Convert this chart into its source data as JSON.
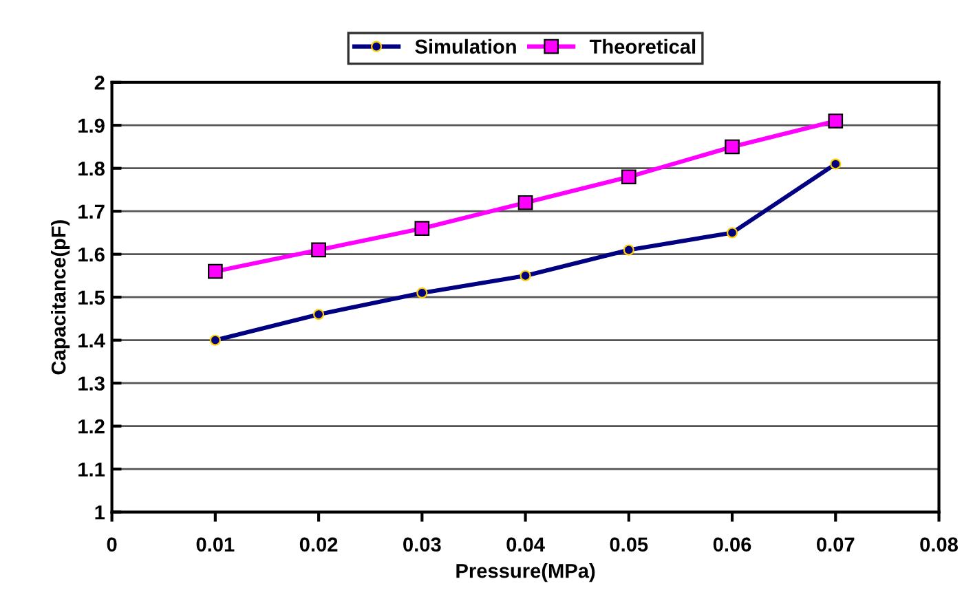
{
  "chart_data": {
    "type": "line",
    "xlabel": "Pressure(MPa)",
    "ylabel": "Capacitance(pF)",
    "x": [
      0.01,
      0.02,
      0.03,
      0.04,
      0.05,
      0.06,
      0.07
    ],
    "series": [
      {
        "name": "Simulation",
        "color": "#000080",
        "marker": "circle",
        "values": [
          1.4,
          1.46,
          1.51,
          1.55,
          1.61,
          1.65,
          1.81
        ]
      },
      {
        "name": "Theoretical",
        "color": "#ff00ff",
        "marker": "square",
        "values": [
          1.56,
          1.61,
          1.66,
          1.72,
          1.78,
          1.85,
          1.91
        ]
      }
    ],
    "xlim": [
      0,
      0.08
    ],
    "xticks": [
      0,
      0.01,
      0.02,
      0.03,
      0.04,
      0.05,
      0.06,
      0.07,
      0.08
    ],
    "ylim": [
      1,
      2
    ],
    "yticks": [
      1,
      1.1,
      1.2,
      1.3,
      1.4,
      1.5,
      1.6,
      1.7,
      1.8,
      1.9,
      2
    ],
    "grid": "y",
    "legend": "top",
    "line_style": "solid"
  }
}
